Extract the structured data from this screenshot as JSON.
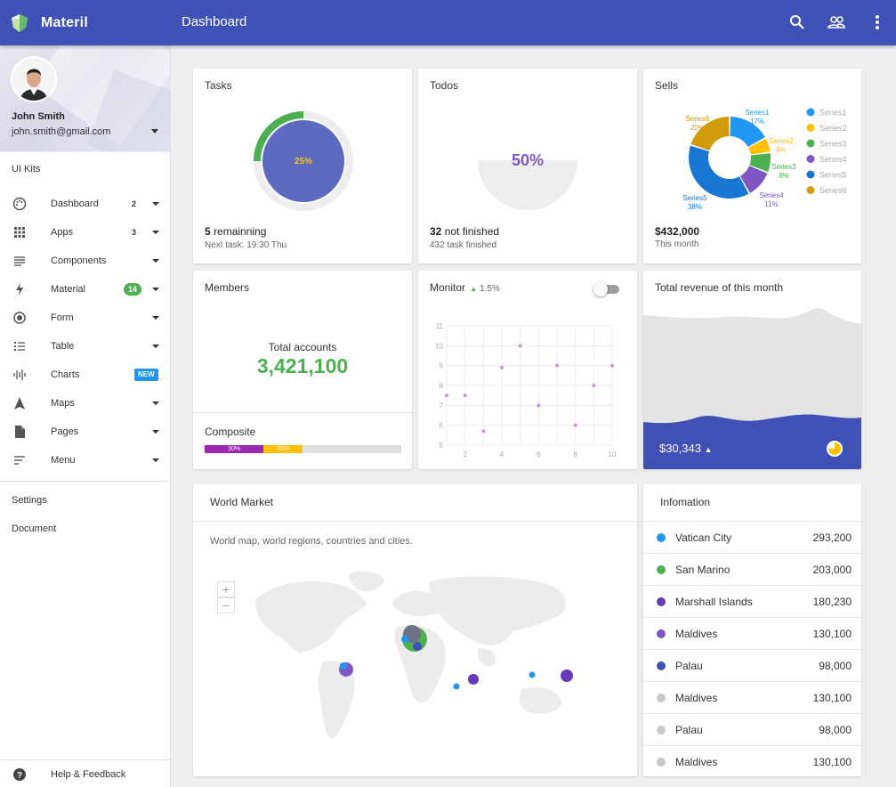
{
  "header": {
    "brand": "Materil",
    "title": "Dashboard",
    "icons": [
      "search-icon",
      "people-icon",
      "more-vert-icon"
    ]
  },
  "profile": {
    "name": "John Smith",
    "email": "john.smith@gmail.com"
  },
  "sidebar": {
    "section_label": "UI Kits",
    "items": [
      {
        "label": "Dashboard",
        "icon": "palette-icon",
        "count": "2"
      },
      {
        "label": "Apps",
        "icon": "apps-grid-icon",
        "count": "3"
      },
      {
        "label": "Components",
        "icon": "list-lines-icon"
      },
      {
        "label": "Material",
        "icon": "bolt-icon",
        "badge": "14"
      },
      {
        "label": "Form",
        "icon": "radio-icon"
      },
      {
        "label": "Table",
        "icon": "table-list-icon"
      },
      {
        "label": "Charts",
        "icon": "chart-bars-icon",
        "badge_new": "NEW"
      },
      {
        "label": "Maps",
        "icon": "navigation-icon"
      },
      {
        "label": "Pages",
        "icon": "page-icon"
      },
      {
        "label": "Menu",
        "icon": "menu-sort-icon"
      }
    ],
    "footer_items": [
      "Settings",
      "Document"
    ],
    "help": "Help & Feedback"
  },
  "tasks": {
    "title": "Tasks",
    "percent": "25%",
    "progress": 25,
    "remaining_count": "5",
    "remaining_label": " remainning",
    "next": "Next task: 19:30 Thu"
  },
  "todos": {
    "title": "Todos",
    "percent": "50%",
    "not_finished_count": "32",
    "not_finished_label": " not finished",
    "finished": "432 task finished"
  },
  "sells": {
    "title": "Sells",
    "total": "$432,000",
    "period": "This month",
    "series": [
      {
        "name": "Series1",
        "pct": 17,
        "label": "17%",
        "color": "#2196f3"
      },
      {
        "name": "Series2",
        "pct": 6,
        "label": "6%",
        "color": "#ffc107"
      },
      {
        "name": "Series3",
        "pct": 8,
        "label": "8%",
        "color": "#4caf50"
      },
      {
        "name": "Series4",
        "pct": 11,
        "label": "11%",
        "color": "#7e57c2"
      },
      {
        "name": "Series5",
        "pct": 38,
        "label": "38%",
        "color": "#1976d2"
      },
      {
        "name": "Series6",
        "pct": 20,
        "label": "20%",
        "color": "#d19c0b"
      }
    ]
  },
  "members": {
    "title": "Members",
    "label": "Total accounts",
    "value": "3,421,100",
    "composite_title": "Composite",
    "seg1": "30%",
    "seg2": "20%",
    "seg1_pct": 30,
    "seg2_pct": 20
  },
  "monitor": {
    "title": "Monitor",
    "delta": "1.5%"
  },
  "chart_data": {
    "type": "scatter",
    "x": [
      1,
      2,
      3,
      4,
      5,
      6,
      7,
      8,
      9,
      10
    ],
    "y": [
      7.5,
      7.5,
      5.7,
      8.9,
      10,
      7,
      9,
      6,
      8,
      9
    ],
    "xticks": [
      "2",
      "4",
      "6",
      "8",
      "10"
    ],
    "yticks": [
      "5",
      "6",
      "7",
      "8",
      "9",
      "10",
      "11"
    ],
    "xlim": [
      1,
      10
    ],
    "ylim": [
      5,
      11
    ],
    "grid": true,
    "color": "#ce93d8"
  },
  "revenue": {
    "title": "Total revenue of this month",
    "value": "$30,343"
  },
  "world": {
    "title": "World Market",
    "subtitle": "World map, world regions, countries and cities.",
    "zoom_in": "+",
    "zoom_out": "−"
  },
  "info": {
    "title": "Infomation",
    "rows": [
      {
        "name": "Vatican City",
        "value": "293,200",
        "color": "#2196f3"
      },
      {
        "name": "San Marino",
        "value": "203,000",
        "color": "#4caf50"
      },
      {
        "name": "Marshall Islands",
        "value": "180,230",
        "color": "#673ab7"
      },
      {
        "name": "Maldives",
        "value": "130,100",
        "color": "#7e57c2"
      },
      {
        "name": "Palau",
        "value": "98,000",
        "color": "#3f51b5"
      },
      {
        "name": "Maldives",
        "value": "130,100",
        "color": "#c8c8c8"
      },
      {
        "name": "Palau",
        "value": "98,000",
        "color": "#c8c8c8"
      },
      {
        "name": "Maldives",
        "value": "130,100",
        "color": "#c8c8c8"
      }
    ]
  }
}
